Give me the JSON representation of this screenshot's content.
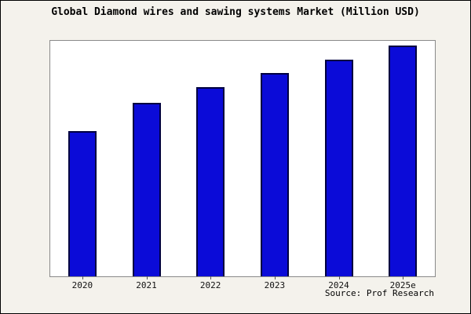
{
  "title": "Global Diamond wires and sawing systems Market (Million USD)",
  "source_label": "Source: Prof Research",
  "colors": {
    "background": "#f4f2ec",
    "plot_background": "#ffffff",
    "bar_fill": "#0b0bd8",
    "bar_border": "#000040",
    "frame_border": "#000000"
  },
  "chart_data": {
    "type": "bar",
    "title": "Global Diamond wires and sawing systems Market (Million USD)",
    "categories": [
      "2020",
      "2021",
      "2022",
      "2023",
      "2024",
      "2025e"
    ],
    "values": [
      63,
      75,
      82,
      88,
      94,
      100
    ],
    "xlabel": "",
    "ylabel": "",
    "ylim": [
      0,
      102
    ],
    "grid": false,
    "legend": false,
    "y_axis_ticks_visible": false,
    "bar_color": "#0b0bd8",
    "bar_border_color": "#000040"
  }
}
